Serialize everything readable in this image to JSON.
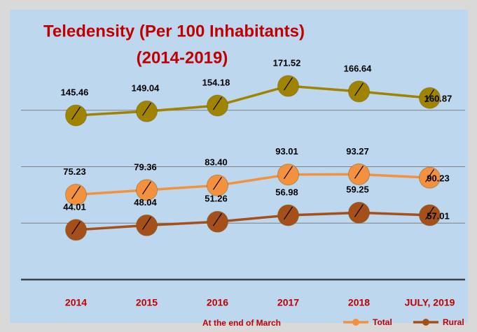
{
  "chart_data": {
    "type": "line",
    "title": "Teledensity  (Per 100 Inhabitants)",
    "subtitle": "(2014-2019)",
    "xlabel": "At the end of March",
    "categories": [
      "2014",
      "2015",
      "2016",
      "2017",
      "2018",
      "JULY, 2019"
    ],
    "series": [
      {
        "color": "#a08400",
        "values": [
          145.46,
          149.04,
          154.18,
          171.52,
          166.64,
          160.87
        ],
        "value_labels": [
          "145.46",
          "149.04",
          "154.18",
          "171.52",
          "166.64",
          "160.87"
        ]
      },
      {
        "name": "Total",
        "color": "#f4913e",
        "values": [
          75.23,
          79.36,
          83.4,
          93.01,
          93.27,
          90.23
        ],
        "value_labels": [
          "75.23",
          "79.36",
          "83.40",
          "93.01",
          "93.27",
          "90.23"
        ]
      },
      {
        "name": "Rural",
        "color": "#a5501a",
        "values": [
          44.01,
          48.04,
          51.26,
          56.98,
          59.25,
          57.01
        ],
        "value_labels": [
          "44.01",
          "48.04",
          "51.26",
          "56.98",
          "59.25",
          "57.01"
        ]
      }
    ],
    "ylim": [
      0,
      200
    ],
    "yticks": [
      0,
      50,
      100,
      150
    ],
    "grid": true,
    "legend": "bottom-right"
  }
}
